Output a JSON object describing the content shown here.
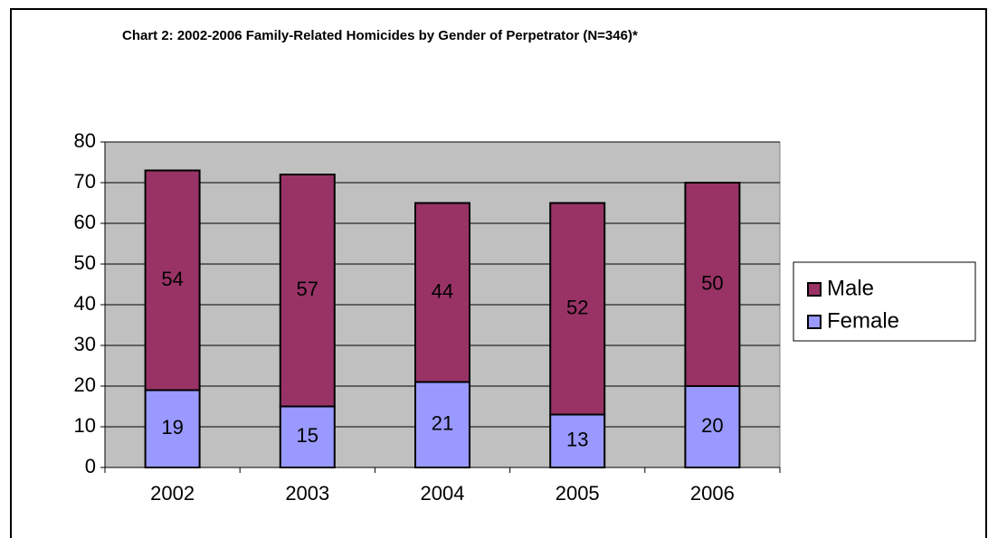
{
  "chart_data": {
    "type": "stacked_bar",
    "title": "Chart 2: 2002-2006 Family-Related Homicides by Gender of Perpetrator (N=346)*",
    "categories": [
      "2002",
      "2003",
      "2004",
      "2005",
      "2006"
    ],
    "series": [
      {
        "name": "Male",
        "color": "#993366",
        "values": [
          54,
          57,
          44,
          52,
          50
        ]
      },
      {
        "name": "Female",
        "color": "#9999ff",
        "values": [
          19,
          15,
          21,
          13,
          20
        ]
      }
    ],
    "ylim": [
      0,
      80
    ],
    "yticks": [
      0,
      10,
      20,
      30,
      40,
      50,
      60,
      70,
      80
    ],
    "grid": true,
    "legend": "right",
    "plot_background": "#c0c0c0"
  }
}
